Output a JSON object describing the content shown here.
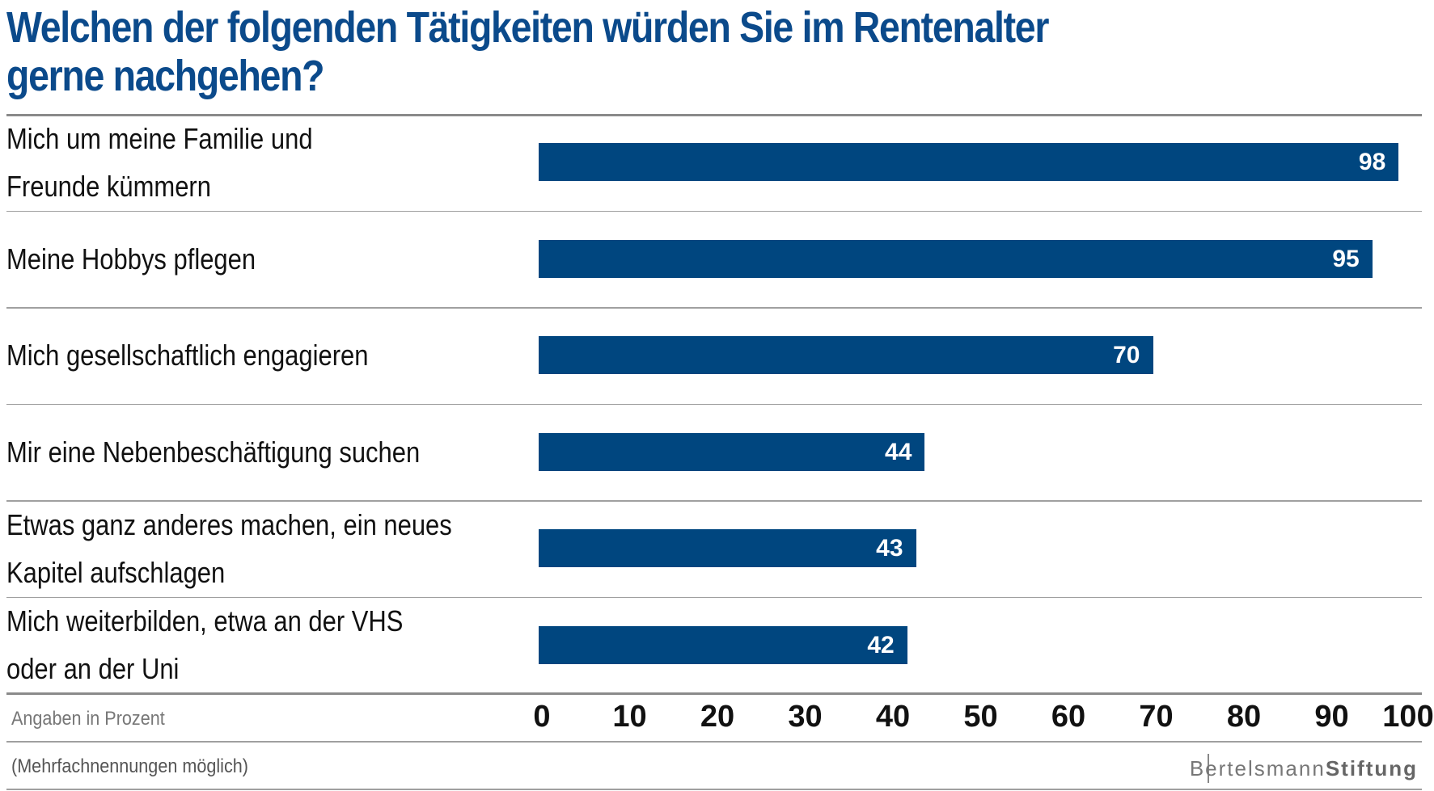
{
  "chart_data": {
    "type": "bar",
    "orientation": "horizontal",
    "title": "Welchen der folgenden Tätigkeiten würden Sie im Rentenalter gerne nachgehen?",
    "title_lines": [
      "Welchen der folgenden Tätigkeiten würden Sie im Rentenalter",
      "gerne nachgehen?"
    ],
    "categories": [
      "Mich um meine Familie und\nFreunde kümmern",
      "Meine Hobbys pflegen",
      "Mich gesellschaftlich engagieren",
      "Mir eine Nebenbeschäftigung suchen",
      "Etwas ganz anderes machen, ein neues\nKapitel aufschlagen",
      "Mich weiterbilden, etwa an der VHS\noder an der Uni"
    ],
    "values": [
      98,
      95,
      70,
      44,
      43,
      42
    ],
    "xlim": [
      0,
      100
    ],
    "ticks": [
      "0",
      "10",
      "20",
      "30",
      "40",
      "50",
      "60",
      "70",
      "80",
      "90",
      "100"
    ],
    "unit_note": "Angaben in Prozent",
    "footnote": "(Mehrfachnennungen möglich)",
    "bar_color": "#00467f",
    "title_color": "#0b4a8b",
    "grid": false
  },
  "logo": {
    "light": "Bertelsmann",
    "bold": "Stiftung"
  }
}
